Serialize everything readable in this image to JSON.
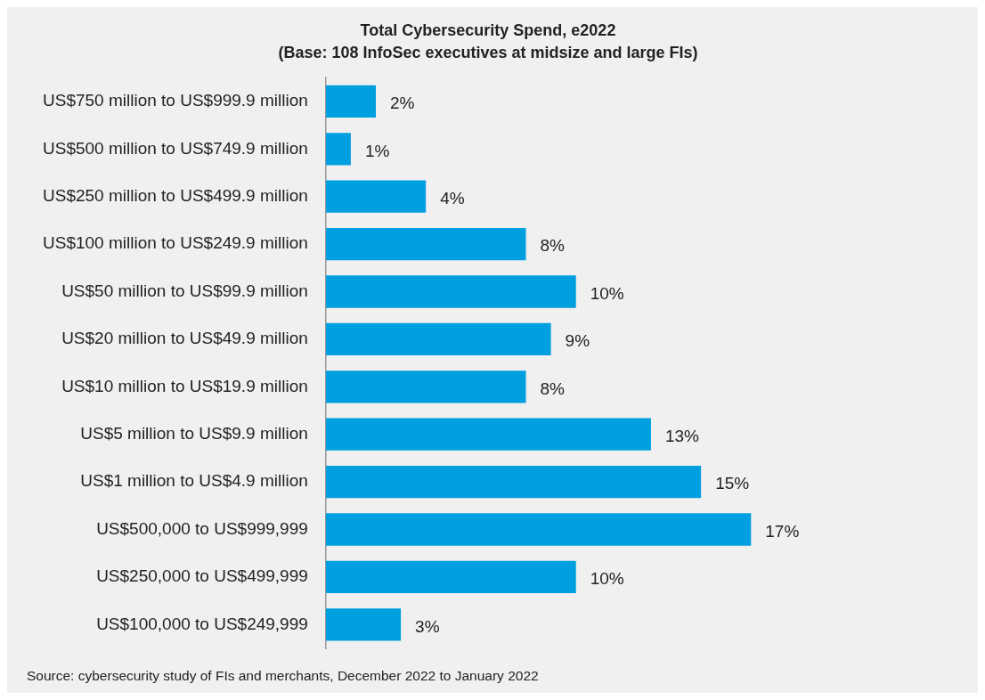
{
  "chart_data": {
    "type": "bar",
    "orientation": "horizontal",
    "title": "Total Cybersecurity Spend, e2022",
    "subtitle": "(Base: 108 InfoSec executives at midsize and large FIs)",
    "categories": [
      "US$750 million to US$999.9 million",
      "US$500 million to US$749.9 million",
      "US$250 million to US$499.9 million",
      "US$100 million to US$249.9 million",
      "US$50 million to US$99.9 million",
      "US$20 million to US$49.9 million",
      "US$10 million to US$19.9 million",
      "US$5 million to US$9.9 million",
      "US$1 million to US$4.9 million",
      "US$500,000 to US$999,999",
      "US$250,000 to US$499,999",
      "US$100,000 to US$249,999"
    ],
    "values": [
      2,
      1,
      4,
      8,
      10,
      9,
      8,
      13,
      15,
      17,
      10,
      3
    ],
    "value_labels": [
      "2%",
      "1%",
      "4%",
      "8%",
      "10%",
      "9%",
      "8%",
      "13%",
      "15%",
      "17%",
      "10%",
      "3%"
    ],
    "color": "#009fdf",
    "annotations": [
      "Source: cybersecurity study of FIs and merchants, December 2022 to January 2022"
    ]
  }
}
